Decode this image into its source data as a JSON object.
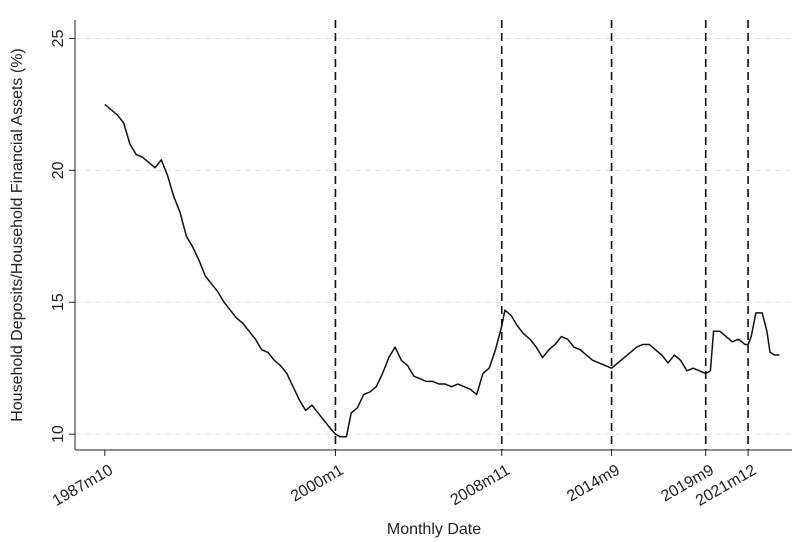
{
  "chart_data": {
    "type": "line",
    "x_label": "Monthly Date",
    "y_label": "Household Deposits/Household Financial Assets (%)",
    "x": [
      "1987m10",
      "1988m2",
      "1988m6",
      "1988m10",
      "1989m2",
      "1989m6",
      "1989m10",
      "1990m2",
      "1990m6",
      "1990m10",
      "1991m2",
      "1991m6",
      "1991m10",
      "1992m2",
      "1992m6",
      "1992m10",
      "1993m2",
      "1993m6",
      "1993m10",
      "1994m2",
      "1994m6",
      "1994m10",
      "1995m2",
      "1995m6",
      "1995m10",
      "1996m2",
      "1996m6",
      "1996m10",
      "1997m2",
      "1997m6",
      "1997m10",
      "1998m2",
      "1998m6",
      "1998m10",
      "1999m2",
      "1999m6",
      "1999m10",
      "2000m1",
      "2000m4",
      "2000m8",
      "2000m11",
      "2001m3",
      "2001m7",
      "2001m11",
      "2002m3",
      "2002m7",
      "2002m11",
      "2003m3",
      "2003m7",
      "2003m11",
      "2004m3",
      "2004m7",
      "2004m11",
      "2005m3",
      "2005m7",
      "2005m11",
      "2006m3",
      "2006m7",
      "2006m11",
      "2007m3",
      "2007m7",
      "2007m11",
      "2008m3",
      "2008m7",
      "2008m11",
      "2009m1",
      "2009m5",
      "2009m9",
      "2010m1",
      "2010m5",
      "2010m9",
      "2011m1",
      "2011m5",
      "2011m9",
      "2012m1",
      "2012m5",
      "2012m9",
      "2013m1",
      "2013m5",
      "2013m9",
      "2014m1",
      "2014m5",
      "2014m9",
      "2015m1",
      "2015m5",
      "2015m9",
      "2016m1",
      "2016m5",
      "2016m9",
      "2017m1",
      "2017m5",
      "2017m9",
      "2018m1",
      "2018m5",
      "2018m9",
      "2019m1",
      "2019m5",
      "2019m9",
      "2019m12",
      "2020m2",
      "2020m6",
      "2020m10",
      "2021m2",
      "2021m6",
      "2021m10",
      "2021m12",
      "2022m2",
      "2022m5",
      "2022m9",
      "2022m12",
      "2023m2",
      "2023m5",
      "2023m8"
    ],
    "series": [
      {
        "color": "#111111",
        "values": [
          22.5,
          22.3,
          22.1,
          21.8,
          21.0,
          20.6,
          20.5,
          20.3,
          20.1,
          20.4,
          19.8,
          19.0,
          18.4,
          17.5,
          17.1,
          16.6,
          16.0,
          15.7,
          15.4,
          15.0,
          14.7,
          14.4,
          14.2,
          13.9,
          13.6,
          13.2,
          13.1,
          12.8,
          12.6,
          12.3,
          11.8,
          11.3,
          10.9,
          11.1,
          10.8,
          10.5,
          10.2,
          10.0,
          9.9,
          9.9,
          10.8,
          11.0,
          11.5,
          11.6,
          11.8,
          12.3,
          12.9,
          13.3,
          12.8,
          12.6,
          12.2,
          12.1,
          12.0,
          12.0,
          11.9,
          11.9,
          11.8,
          11.9,
          11.8,
          11.7,
          11.5,
          12.3,
          12.5,
          13.2,
          14.1,
          14.7,
          14.5,
          14.1,
          13.8,
          13.6,
          13.3,
          12.9,
          13.2,
          13.4,
          13.7,
          13.6,
          13.3,
          13.2,
          13.0,
          12.8,
          12.7,
          12.6,
          12.5,
          12.7,
          12.9,
          13.1,
          13.3,
          13.4,
          13.4,
          13.2,
          13.0,
          12.7,
          13.0,
          12.8,
          12.4,
          12.5,
          12.4,
          12.3,
          12.4,
          13.9,
          13.9,
          13.7,
          13.5,
          13.6,
          13.4,
          13.4,
          13.7,
          14.6,
          14.6,
          13.9,
          13.1,
          13.0,
          13.0
        ]
      }
    ],
    "xlim": [
      "1986m3",
      "2024m4"
    ],
    "xticks": [
      "1987m10",
      "2000m1",
      "2008m11",
      "2014m9",
      "2019m9",
      "2021m12"
    ],
    "vlines": [
      "2000m1",
      "2008m11",
      "2014m9",
      "2019m9",
      "2021m12"
    ],
    "ylim": [
      9.4,
      25.7
    ],
    "yticks": [
      10,
      15,
      20,
      25
    ],
    "grid": true
  }
}
